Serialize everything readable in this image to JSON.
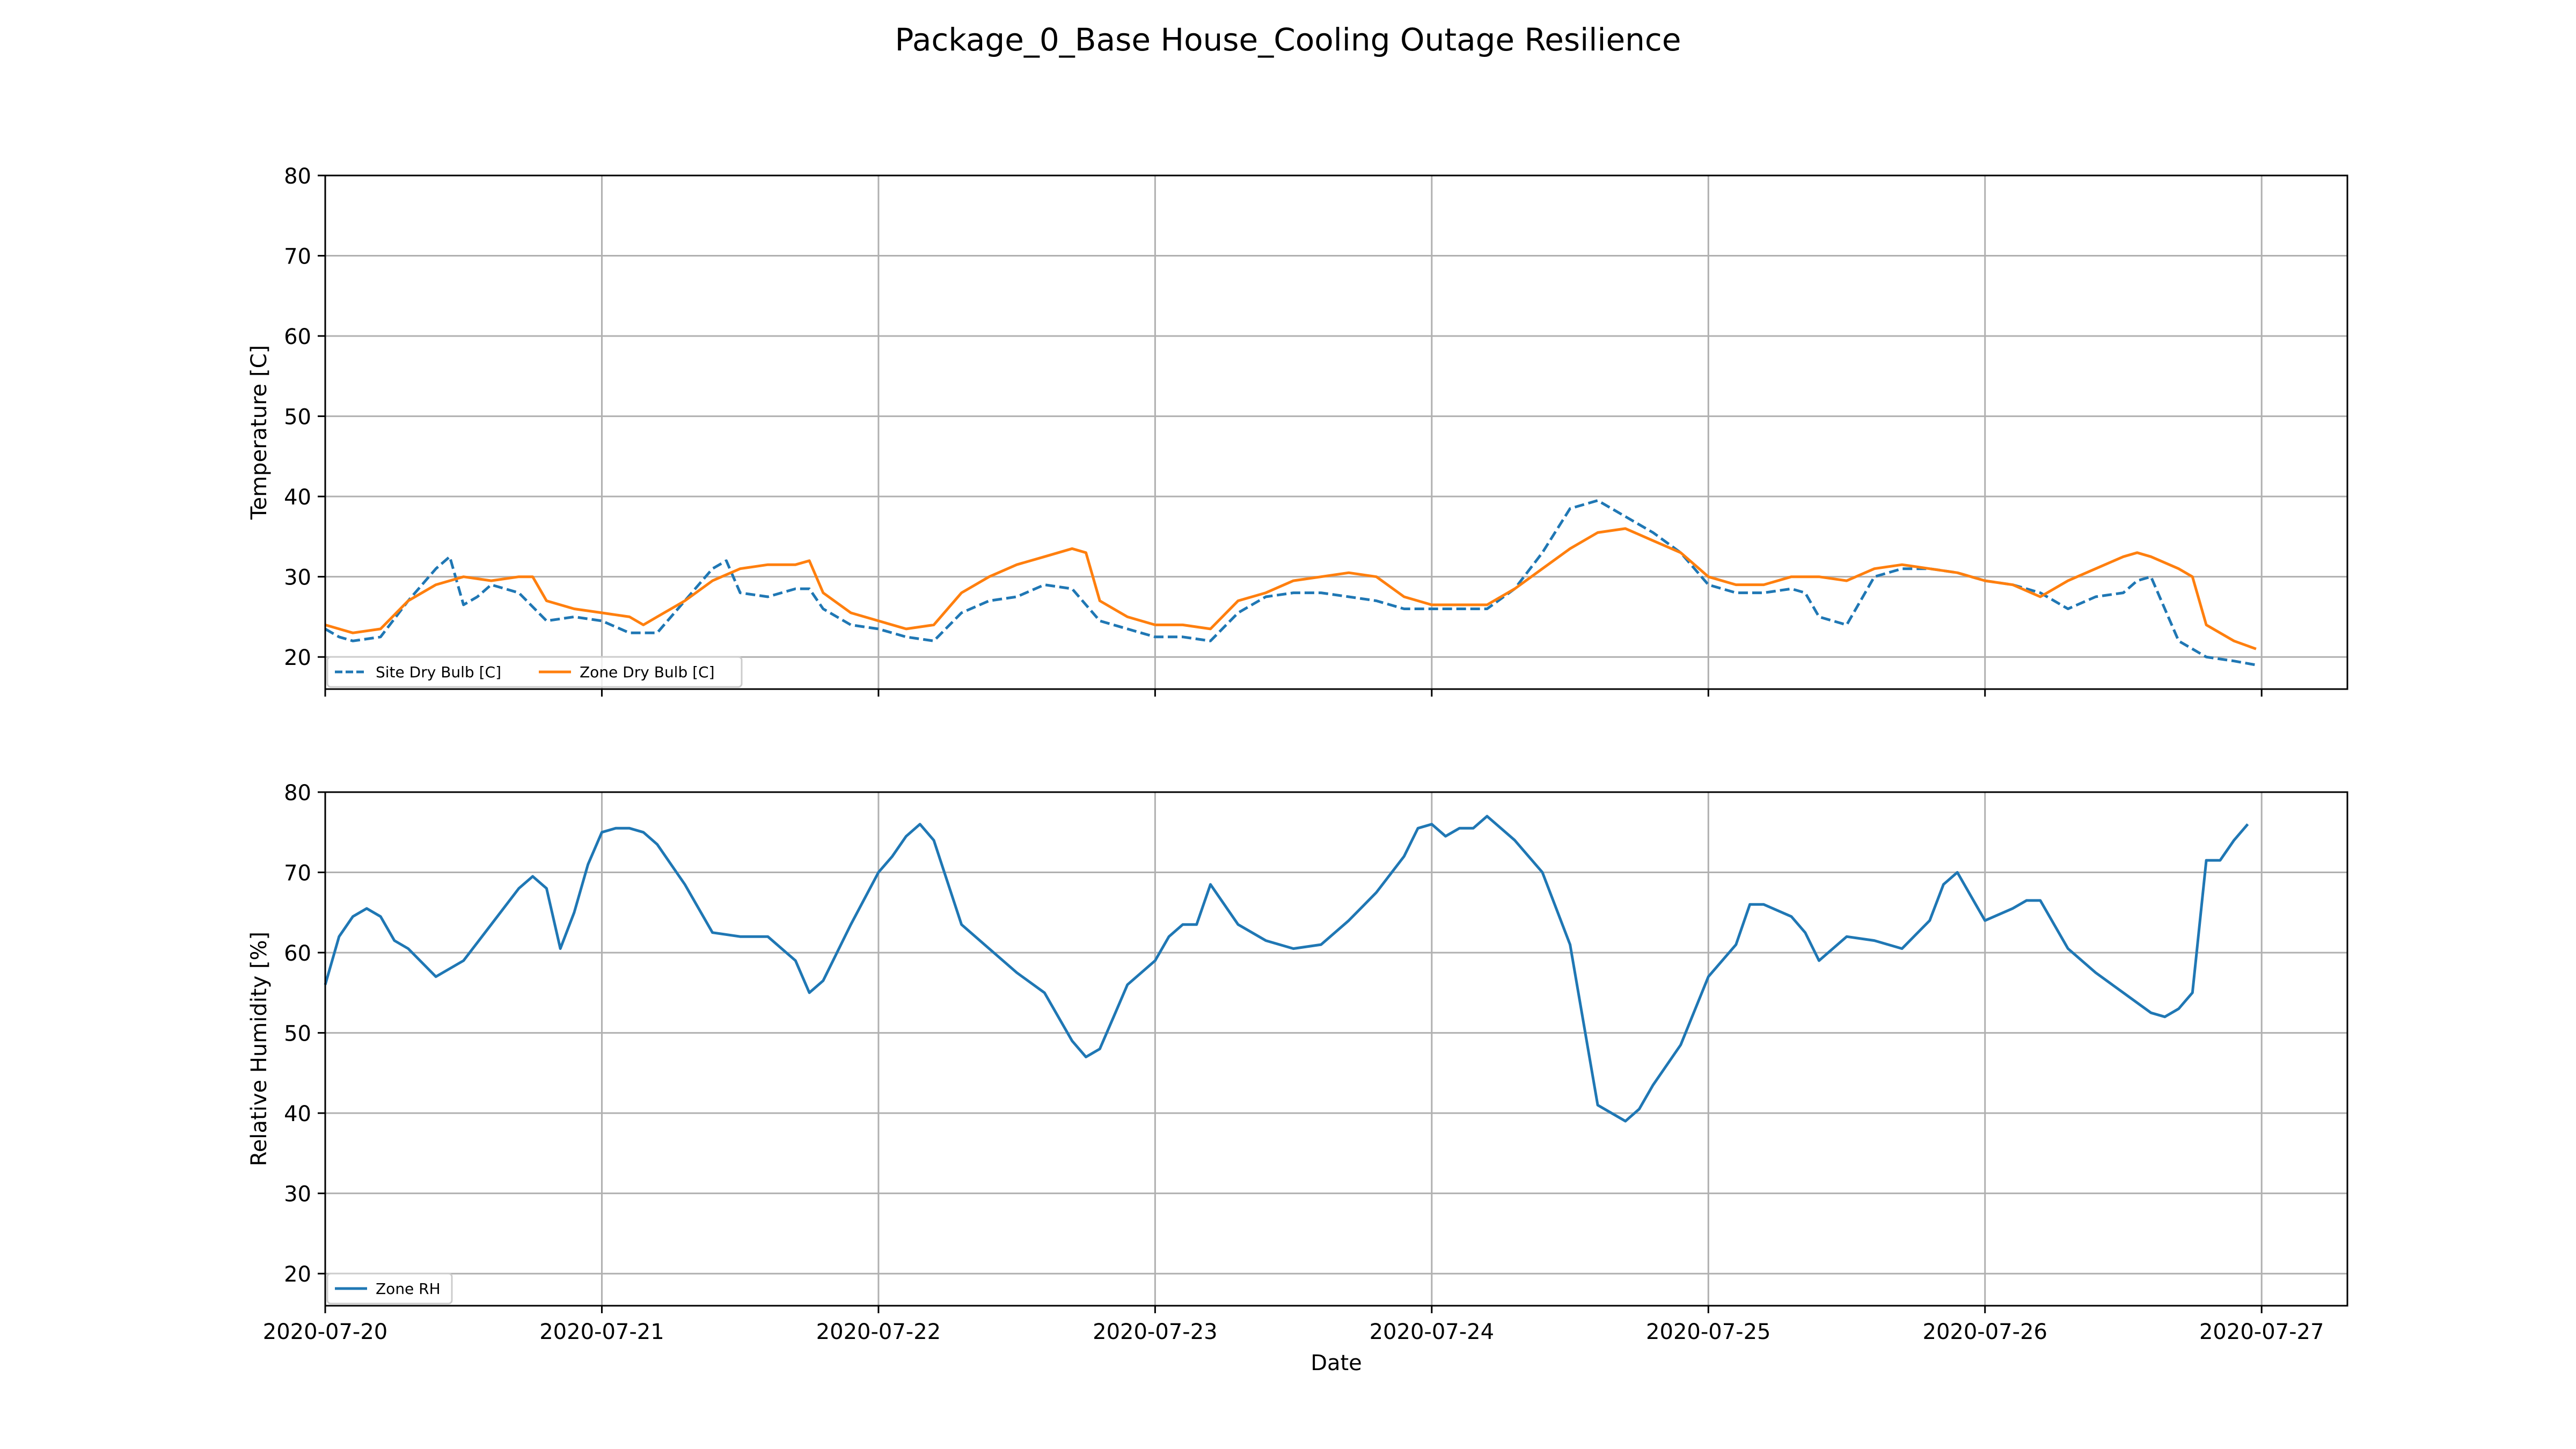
{
  "title": "Package_0_Base House_Cooling Outage Resilience",
  "chart_data": [
    {
      "type": "line",
      "ylabel": "Temperature [C]",
      "xlabel": "",
      "xlim": [
        0,
        7.31
      ],
      "ylim": [
        16.0,
        80.0
      ],
      "yticks": [
        20,
        30,
        40,
        50,
        60,
        70,
        80
      ],
      "grid": true,
      "legend_position": "lower-left",
      "series": [
        {
          "name": "Site Dry Bulb [C]",
          "color": "#1f77b4",
          "style": "dashed",
          "x": [
            0.0,
            0.05,
            0.1,
            0.2,
            0.3,
            0.4,
            0.45,
            0.5,
            0.55,
            0.6,
            0.7,
            0.8,
            0.9,
            1.0,
            1.1,
            1.2,
            1.3,
            1.4,
            1.45,
            1.5,
            1.6,
            1.7,
            1.75,
            1.8,
            1.9,
            2.0,
            2.1,
            2.2,
            2.3,
            2.4,
            2.5,
            2.6,
            2.7,
            2.8,
            2.9,
            3.0,
            3.1,
            3.2,
            3.3,
            3.4,
            3.5,
            3.6,
            3.7,
            3.8,
            3.9,
            4.0,
            4.1,
            4.2,
            4.3,
            4.4,
            4.5,
            4.6,
            4.7,
            4.8,
            4.9,
            5.0,
            5.1,
            5.2,
            5.3,
            5.35,
            5.4,
            5.5,
            5.6,
            5.7,
            5.8,
            5.9,
            6.0,
            6.1,
            6.2,
            6.3,
            6.4,
            6.5,
            6.55,
            6.6,
            6.7,
            6.8,
            6.9,
            6.98
          ],
          "y": [
            23.5,
            22.5,
            22.0,
            22.5,
            27.0,
            31.0,
            32.5,
            26.5,
            27.5,
            29.0,
            28.0,
            24.5,
            25.0,
            24.5,
            23.0,
            23.0,
            27.0,
            31.0,
            32.0,
            28.0,
            27.5,
            28.5,
            28.5,
            26.0,
            24.0,
            23.5,
            22.5,
            22.0,
            25.5,
            27.0,
            27.5,
            29.0,
            28.5,
            24.5,
            23.5,
            22.5,
            22.5,
            22.0,
            25.5,
            27.5,
            28.0,
            28.0,
            27.5,
            27.0,
            26.0,
            26.0,
            26.0,
            26.0,
            28.5,
            33.0,
            38.5,
            39.5,
            37.5,
            35.5,
            33.0,
            29.0,
            28.0,
            28.0,
            28.5,
            28.0,
            25.0,
            24.0,
            30.0,
            31.0,
            31.0,
            30.5,
            29.5,
            29.0,
            28.0,
            26.0,
            27.5,
            28.0,
            29.5,
            30.0,
            22.0,
            20.0,
            19.5,
            19.0
          ]
        },
        {
          "name": "Zone Dry Bulb [C]",
          "color": "#ff7f0e",
          "style": "solid",
          "x": [
            0.0,
            0.1,
            0.2,
            0.3,
            0.4,
            0.5,
            0.6,
            0.7,
            0.75,
            0.8,
            0.9,
            1.0,
            1.1,
            1.15,
            1.2,
            1.3,
            1.4,
            1.5,
            1.6,
            1.7,
            1.75,
            1.8,
            1.9,
            2.0,
            2.1,
            2.2,
            2.3,
            2.4,
            2.5,
            2.6,
            2.7,
            2.75,
            2.8,
            2.9,
            3.0,
            3.1,
            3.2,
            3.3,
            3.4,
            3.5,
            3.6,
            3.7,
            3.8,
            3.9,
            4.0,
            4.1,
            4.2,
            4.3,
            4.4,
            4.5,
            4.6,
            4.7,
            4.8,
            4.9,
            5.0,
            5.1,
            5.2,
            5.3,
            5.4,
            5.5,
            5.6,
            5.7,
            5.8,
            5.9,
            6.0,
            6.1,
            6.2,
            6.3,
            6.4,
            6.5,
            6.55,
            6.6,
            6.7,
            6.75,
            6.8,
            6.9,
            6.98
          ],
          "y": [
            24.0,
            23.0,
            23.5,
            27.0,
            29.0,
            30.0,
            29.5,
            30.0,
            30.0,
            27.0,
            26.0,
            25.5,
            25.0,
            24.0,
            25.0,
            27.0,
            29.5,
            31.0,
            31.5,
            31.5,
            32.0,
            28.0,
            25.5,
            24.5,
            23.5,
            24.0,
            28.0,
            30.0,
            31.5,
            32.5,
            33.5,
            33.0,
            27.0,
            25.0,
            24.0,
            24.0,
            23.5,
            27.0,
            28.0,
            29.5,
            30.0,
            30.5,
            30.0,
            27.5,
            26.5,
            26.5,
            26.5,
            28.5,
            31.0,
            33.5,
            35.5,
            36.0,
            34.5,
            33.0,
            30.0,
            29.0,
            29.0,
            30.0,
            30.0,
            29.5,
            31.0,
            31.5,
            31.0,
            30.5,
            29.5,
            29.0,
            27.5,
            29.5,
            31.0,
            32.5,
            33.0,
            32.5,
            31.0,
            30.0,
            24.0,
            22.0,
            21.0
          ]
        }
      ]
    },
    {
      "type": "line",
      "ylabel": "Relative Humidity [%]",
      "xlabel": "Date",
      "xlim": [
        0,
        7.31
      ],
      "ylim": [
        16.0,
        80.0
      ],
      "yticks": [
        20,
        30,
        40,
        50,
        60,
        70,
        80
      ],
      "xtick_values": [
        0,
        1,
        2,
        3,
        4,
        5,
        6,
        7
      ],
      "xtick_labels": [
        "2020-07-20",
        "2020-07-21",
        "2020-07-22",
        "2020-07-23",
        "2020-07-24",
        "2020-07-25",
        "2020-07-26",
        "2020-07-27"
      ],
      "grid": true,
      "legend_position": "lower-left",
      "series": [
        {
          "name": "Zone RH",
          "color": "#1f77b4",
          "style": "solid",
          "x": [
            0.0,
            0.05,
            0.1,
            0.15,
            0.2,
            0.25,
            0.3,
            0.4,
            0.5,
            0.6,
            0.7,
            0.75,
            0.8,
            0.85,
            0.9,
            0.95,
            1.0,
            1.05,
            1.1,
            1.15,
            1.2,
            1.3,
            1.4,
            1.5,
            1.6,
            1.7,
            1.75,
            1.8,
            1.9,
            2.0,
            2.05,
            2.1,
            2.15,
            2.2,
            2.3,
            2.4,
            2.5,
            2.6,
            2.7,
            2.75,
            2.8,
            2.85,
            2.9,
            3.0,
            3.05,
            3.1,
            3.15,
            3.2,
            3.3,
            3.4,
            3.5,
            3.6,
            3.7,
            3.8,
            3.9,
            3.95,
            4.0,
            4.05,
            4.1,
            4.15,
            4.2,
            4.3,
            4.4,
            4.5,
            4.6,
            4.7,
            4.75,
            4.8,
            4.9,
            5.0,
            5.1,
            5.15,
            5.2,
            5.3,
            5.35,
            5.4,
            5.5,
            5.6,
            5.7,
            5.8,
            5.85,
            5.9,
            6.0,
            6.1,
            6.15,
            6.2,
            6.3,
            6.4,
            6.5,
            6.6,
            6.65,
            6.7,
            6.75,
            6.8,
            6.85,
            6.9,
            6.95
          ],
          "y": [
            56.0,
            62.0,
            64.5,
            65.5,
            64.5,
            61.5,
            60.5,
            57.0,
            59.0,
            63.5,
            68.0,
            69.5,
            68.0,
            60.5,
            65.0,
            71.0,
            75.0,
            75.5,
            75.5,
            75.0,
            73.5,
            68.5,
            62.5,
            62.0,
            62.0,
            59.0,
            55.0,
            56.5,
            63.5,
            70.0,
            72.0,
            74.5,
            76.0,
            74.0,
            63.5,
            60.5,
            57.5,
            55.0,
            49.0,
            47.0,
            48.0,
            52.0,
            56.0,
            59.0,
            62.0,
            63.5,
            63.5,
            68.5,
            63.5,
            61.5,
            60.5,
            61.0,
            64.0,
            67.5,
            72.0,
            75.5,
            76.0,
            74.5,
            75.5,
            75.5,
            77.0,
            74.0,
            70.0,
            61.0,
            41.0,
            39.0,
            40.5,
            43.5,
            48.5,
            57.0,
            61.0,
            66.0,
            66.0,
            64.5,
            62.5,
            59.0,
            62.0,
            61.5,
            60.5,
            64.0,
            68.5,
            70.0,
            64.0,
            65.5,
            66.5,
            66.5,
            60.5,
            57.5,
            55.0,
            52.5,
            52.0,
            53.0,
            55.0,
            71.5,
            71.5,
            74.0,
            76.0
          ]
        }
      ]
    }
  ]
}
